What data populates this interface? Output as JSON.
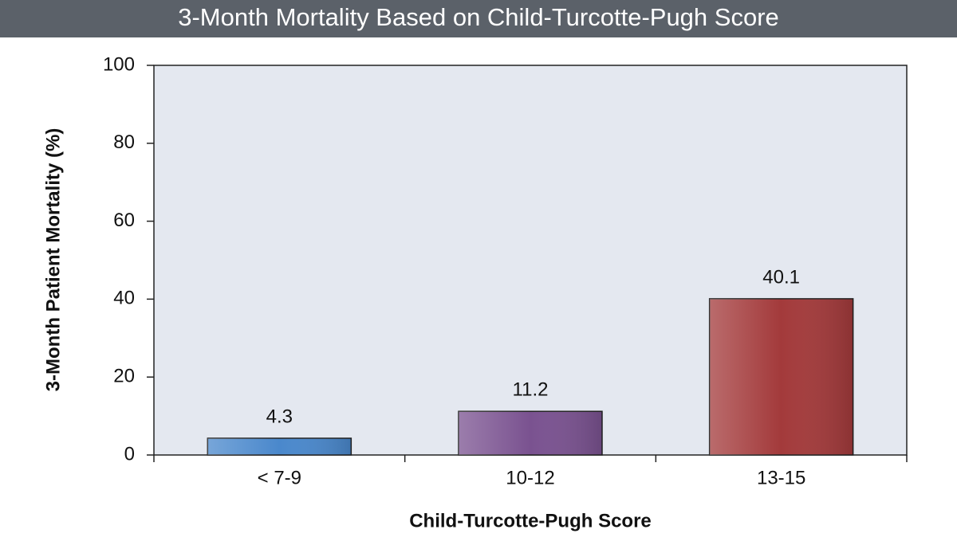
{
  "chart_data": {
    "type": "bar",
    "title": "3-Month Mortality Based on Child-Turcotte-Pugh Score",
    "x_label": "Child-Turcotte-Pugh Score",
    "y_label": "3-Month Patient Mortality (%)",
    "categories": [
      "< 7-9",
      "10-12",
      "13-15"
    ],
    "values": [
      4.3,
      11.2,
      40.1
    ],
    "colors": [
      "#4a88cc",
      "#7a5290",
      "#a33a3b"
    ],
    "ylim": [
      0,
      100
    ],
    "yticks": [
      0,
      20,
      40,
      60,
      80,
      100
    ],
    "grid": false
  }
}
